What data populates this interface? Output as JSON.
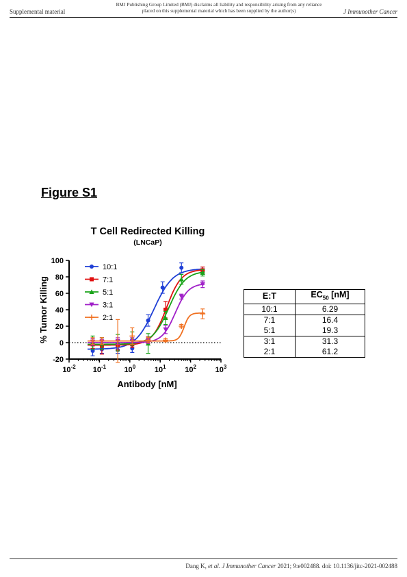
{
  "header": {
    "left": "Supplemental material",
    "center_line1": "BMJ Publishing Group Limited (BMJ) disclaims all liability and responsibility arising from any reliance",
    "center_line2": "placed on this supplemental material which has been supplied by the author(s)",
    "right": "J Immunother Cancer"
  },
  "figure_label": "Figure S1",
  "footer": {
    "authors": "Dang K, ",
    "etal": "et al.",
    "journal": " J Immunother Cancer",
    "citation": " 2021; 9:e002488. doi: 10.1136/jitc-2021-002488"
  },
  "chart_data": {
    "type": "scatter",
    "title": "T Cell Redirected Killing",
    "subtitle": "(LNCaP)",
    "xlabel": "Antibody [nM]",
    "ylabel": "% Tumor Killing",
    "x_scale": "log",
    "xlim": [
      0.01,
      1000
    ],
    "ylim": [
      -20,
      100
    ],
    "x_ticks": [
      {
        "base": "10",
        "exp": "-2"
      },
      {
        "base": "10",
        "exp": "-1"
      },
      {
        "base": "10",
        "exp": "0"
      },
      {
        "base": "10",
        "exp": "1"
      },
      {
        "base": "10",
        "exp": "2"
      },
      {
        "base": "10",
        "exp": "3"
      }
    ],
    "y_ticks": [
      "-20",
      "0",
      "20",
      "40",
      "60",
      "80",
      "100"
    ],
    "reference_line": 0,
    "x": [
      0.06,
      0.12,
      0.4,
      1.2,
      4.0,
      12.0,
      15.0,
      50.0,
      250.0
    ],
    "legend_position": "top-left",
    "series": [
      {
        "name": "10:1",
        "color": "#1f3fd6",
        "marker": "circle",
        "ec50": 6.29,
        "bottom": -8,
        "top": 90,
        "hill": 1.4,
        "x": [
          0.06,
          0.12,
          0.4,
          1.2,
          4.0,
          12.0,
          50.0,
          250.0
        ],
        "y": [
          -10,
          -8,
          -9,
          -7,
          27,
          67,
          91,
          88
        ],
        "err": [
          6,
          5,
          4,
          5,
          7,
          7,
          6,
          4
        ]
      },
      {
        "name": "7:1",
        "color": "#e01010",
        "marker": "square",
        "ec50": 16.4,
        "bottom": -3,
        "top": 89,
        "hill": 1.8,
        "x": [
          0.06,
          0.12,
          0.4,
          1.2,
          4.0,
          15.0,
          250.0
        ],
        "y": [
          -2,
          -4,
          -3,
          -2,
          3,
          40,
          88
        ],
        "err": [
          5,
          10,
          6,
          4,
          4,
          10,
          4
        ]
      },
      {
        "name": "5:1",
        "color": "#1aa31a",
        "marker": "triangle",
        "ec50": 19.3,
        "bottom": -2,
        "top": 87,
        "hill": 1.6,
        "x": [
          0.06,
          0.12,
          0.4,
          1.2,
          4.0,
          15.0,
          50.0,
          250.0
        ],
        "y": [
          0,
          -1,
          0,
          5,
          -1,
          30,
          77,
          85
        ],
        "err": [
          8,
          7,
          10,
          8,
          12,
          8,
          6,
          4
        ]
      },
      {
        "name": "3:1",
        "color": "#a020c8",
        "marker": "triangle-down",
        "ec50": 31.3,
        "bottom": 0,
        "top": 72,
        "hill": 2.0,
        "x": [
          0.06,
          0.12,
          0.4,
          1.2,
          4.0,
          15.0,
          50.0,
          250.0
        ],
        "y": [
          1,
          1,
          2,
          2,
          2,
          16,
          56,
          71
        ],
        "err": [
          4,
          3,
          4,
          4,
          3,
          5,
          3,
          4
        ]
      },
      {
        "name": "2:1",
        "color": "#f07020",
        "marker": "plus",
        "ec50": 61.2,
        "bottom": 2,
        "top": 36,
        "hill": 5.0,
        "x": [
          0.06,
          0.12,
          0.4,
          1.2,
          4.0,
          15.0,
          50.0,
          250.0
        ],
        "y": [
          2,
          2,
          2,
          8,
          3,
          3,
          20,
          35
        ],
        "err": [
          4,
          4,
          26,
          10,
          3,
          2,
          2,
          6
        ]
      }
    ]
  },
  "table": {
    "header_col1": "E:T",
    "header_col2_main": "EC",
    "header_col2_sub": "50",
    "header_col2_unit": " [nM]",
    "rows": [
      {
        "et": "10:1",
        "ec50": "6.29"
      },
      {
        "et": "7:1",
        "ec50": "16.4"
      },
      {
        "et": "5:1",
        "ec50": "19.3"
      },
      {
        "et": "3:1",
        "ec50": "31.3"
      },
      {
        "et": "2:1",
        "ec50": "61.2"
      }
    ]
  }
}
